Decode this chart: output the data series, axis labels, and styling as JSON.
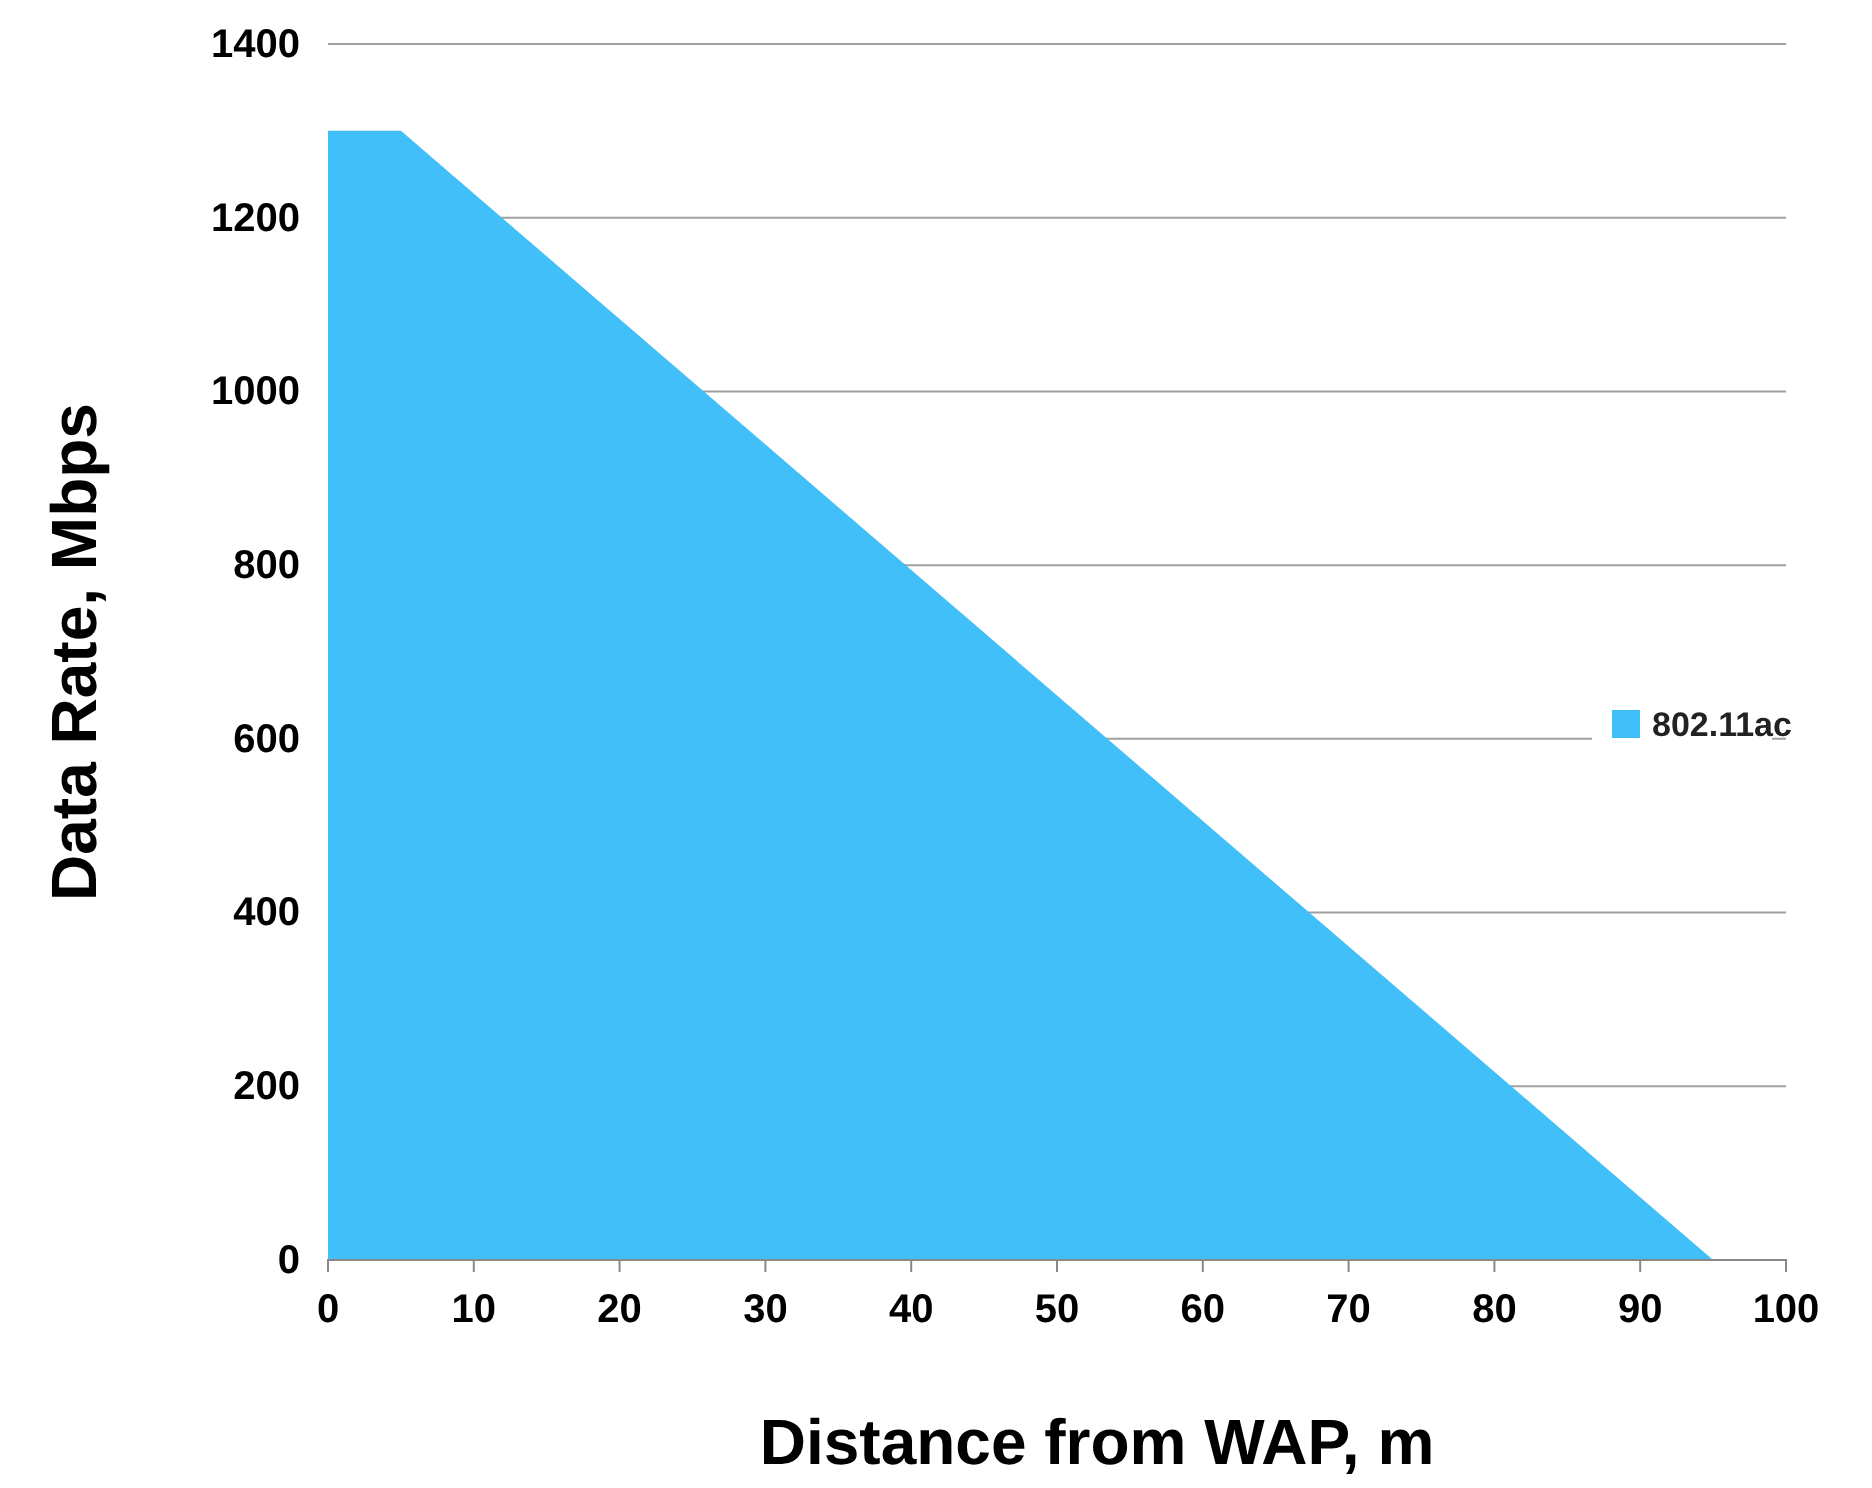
{
  "chart_data": {
    "type": "area",
    "xlabel": "Distance from WAP, m",
    "ylabel": "Data Rate, Mbps",
    "x": [
      0,
      5,
      95
    ],
    "series": [
      {
        "name": "802.11ac",
        "color": "#41bff8",
        "values": [
          1300,
          1300,
          0
        ]
      }
    ],
    "xlim": [
      0,
      100
    ],
    "xticks": [
      0,
      10,
      20,
      30,
      40,
      50,
      60,
      70,
      80,
      90,
      100
    ],
    "ylim": [
      0,
      1400
    ],
    "yticks": [
      0,
      200,
      400,
      600,
      800,
      1000,
      1200,
      1400
    ],
    "grid": "y",
    "legend": "right"
  }
}
